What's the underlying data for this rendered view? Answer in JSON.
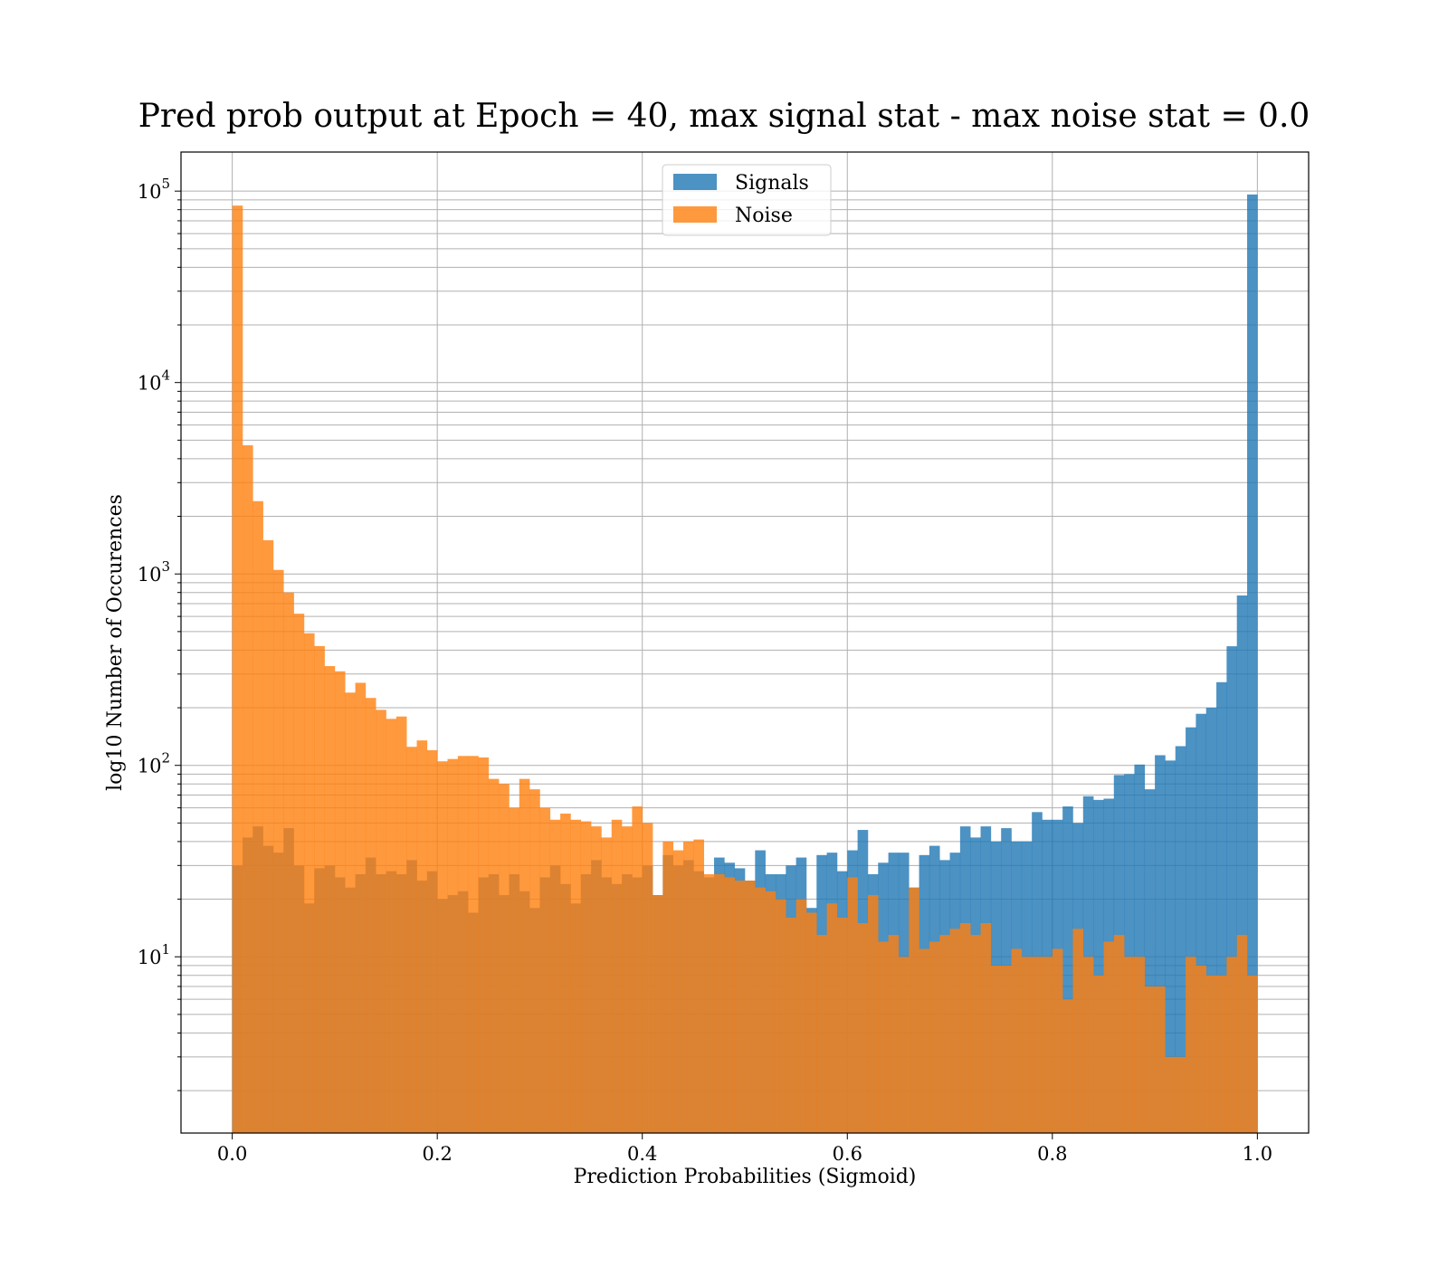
{
  "chart_data": {
    "type": "bar",
    "title": "Pred prob output at Epoch = 40, max signal stat - max noise stat = 0.0",
    "xlabel": "Prediction Probabilities (Sigmoid)",
    "ylabel": "log10 Number of Occurences",
    "xlim": [
      -0.05,
      1.05
    ],
    "ylim": [
      1.2,
      160000
    ],
    "yscale": "log",
    "grid": true,
    "legend_position": "top-center",
    "x_ticks": [
      {
        "value": 0.0,
        "label": "0.0"
      },
      {
        "value": 0.2,
        "label": "0.2"
      },
      {
        "value": 0.4,
        "label": "0.4"
      },
      {
        "value": 0.6,
        "label": "0.6"
      },
      {
        "value": 0.8,
        "label": "0.8"
      },
      {
        "value": 1.0,
        "label": "1.0"
      }
    ],
    "y_ticks": [
      {
        "value": 10,
        "base": "10",
        "exp": "1"
      },
      {
        "value": 100,
        "base": "10",
        "exp": "2"
      },
      {
        "value": 1000,
        "base": "10",
        "exp": "3"
      },
      {
        "value": 10000,
        "base": "10",
        "exp": "4"
      },
      {
        "value": 100000,
        "base": "10",
        "exp": "5"
      }
    ],
    "bin_start": 0.0,
    "bin_width": 0.01,
    "series": [
      {
        "name": "Signals",
        "color": "#1f77b4",
        "alpha": 0.8,
        "values": [
          30,
          42,
          48,
          38,
          35,
          47,
          30,
          19,
          29,
          30,
          26,
          23,
          27,
          33,
          27,
          28,
          27,
          32,
          25,
          28,
          20,
          21,
          22,
          17,
          26,
          27,
          21,
          27,
          22,
          18,
          26,
          30,
          24,
          19,
          27,
          32,
          26,
          24,
          27,
          26,
          30,
          21,
          34,
          30,
          32,
          28,
          26,
          33,
          31,
          29,
          25,
          36,
          27,
          27,
          30,
          33,
          18,
          34,
          35,
          28,
          36,
          46,
          27,
          31,
          35,
          35,
          23,
          34,
          38,
          32,
          35,
          48,
          42,
          48,
          40,
          47,
          40,
          40,
          57,
          52,
          52,
          61,
          50,
          69,
          66,
          67,
          89,
          90,
          101,
          75,
          113,
          106,
          126,
          158,
          186,
          200,
          272,
          419,
          772,
          96000
        ]
      },
      {
        "name": "Noise",
        "color": "#ff7f0e",
        "alpha": 0.8,
        "values": [
          84000,
          4700,
          2400,
          1500,
          1050,
          800,
          620,
          490,
          420,
          330,
          310,
          240,
          270,
          225,
          195,
          175,
          180,
          125,
          135,
          120,
          105,
          108,
          112,
          112,
          110,
          85,
          80,
          60,
          85,
          75,
          60,
          52,
          56,
          52,
          51,
          48,
          42,
          52,
          48,
          61,
          50,
          21,
          40,
          36,
          40,
          41,
          27,
          27,
          26,
          25,
          25,
          23,
          22,
          20,
          16,
          20,
          17,
          13,
          19,
          16,
          26,
          15,
          21,
          12,
          13,
          10,
          23,
          11,
          12,
          13,
          14,
          15,
          13,
          15,
          9,
          9,
          11,
          10,
          10,
          10,
          11,
          6,
          14,
          10,
          8,
          12,
          13,
          10,
          10,
          7,
          7,
          3,
          3,
          10,
          9,
          8,
          8,
          10,
          13,
          8
        ]
      }
    ]
  }
}
